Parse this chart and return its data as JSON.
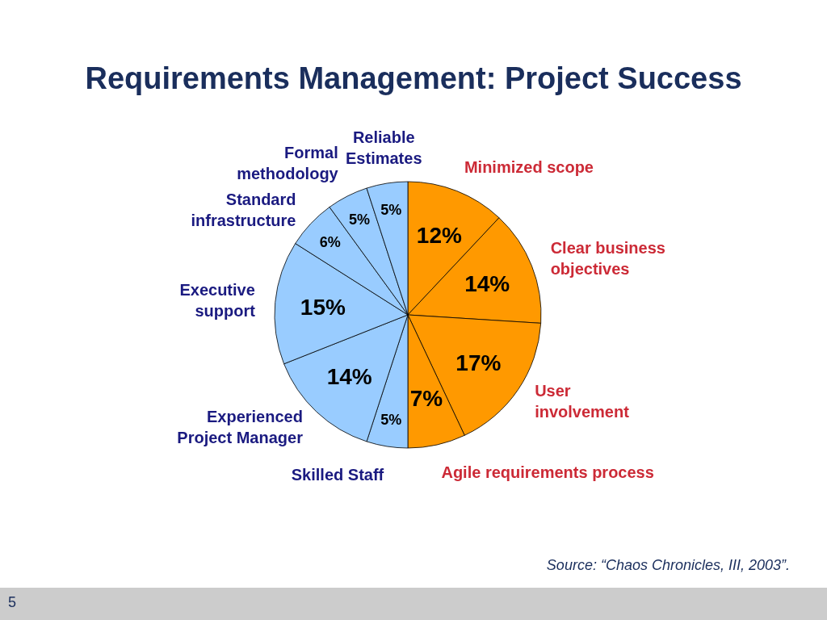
{
  "chart_data": {
    "type": "pie",
    "title": "Requirements Management: Project Success",
    "categories": [
      "Minimized scope",
      "Clear business objectives",
      "User involvement",
      "Agile requirements process",
      "Skilled Staff",
      "Experienced Project Manager",
      "Executive support",
      "Standard infrastructure",
      "Formal methodology",
      "Reliable Estimates"
    ],
    "values": [
      12,
      14,
      17,
      7,
      5,
      14,
      15,
      6,
      5,
      5
    ],
    "value_labels": [
      "12%",
      "14%",
      "17%",
      "7%",
      "5%",
      "14%",
      "15%",
      "6%",
      "5%",
      "5%"
    ],
    "colors": [
      "#ff9900",
      "#ff9900",
      "#ff9900",
      "#ff9900",
      "#99ccff",
      "#99ccff",
      "#99ccff",
      "#99ccff",
      "#99ccff",
      "#99ccff"
    ],
    "annotations": [
      "Source:  “Chaos Chronicles, III, 2003”.",
      "5"
    ]
  }
}
